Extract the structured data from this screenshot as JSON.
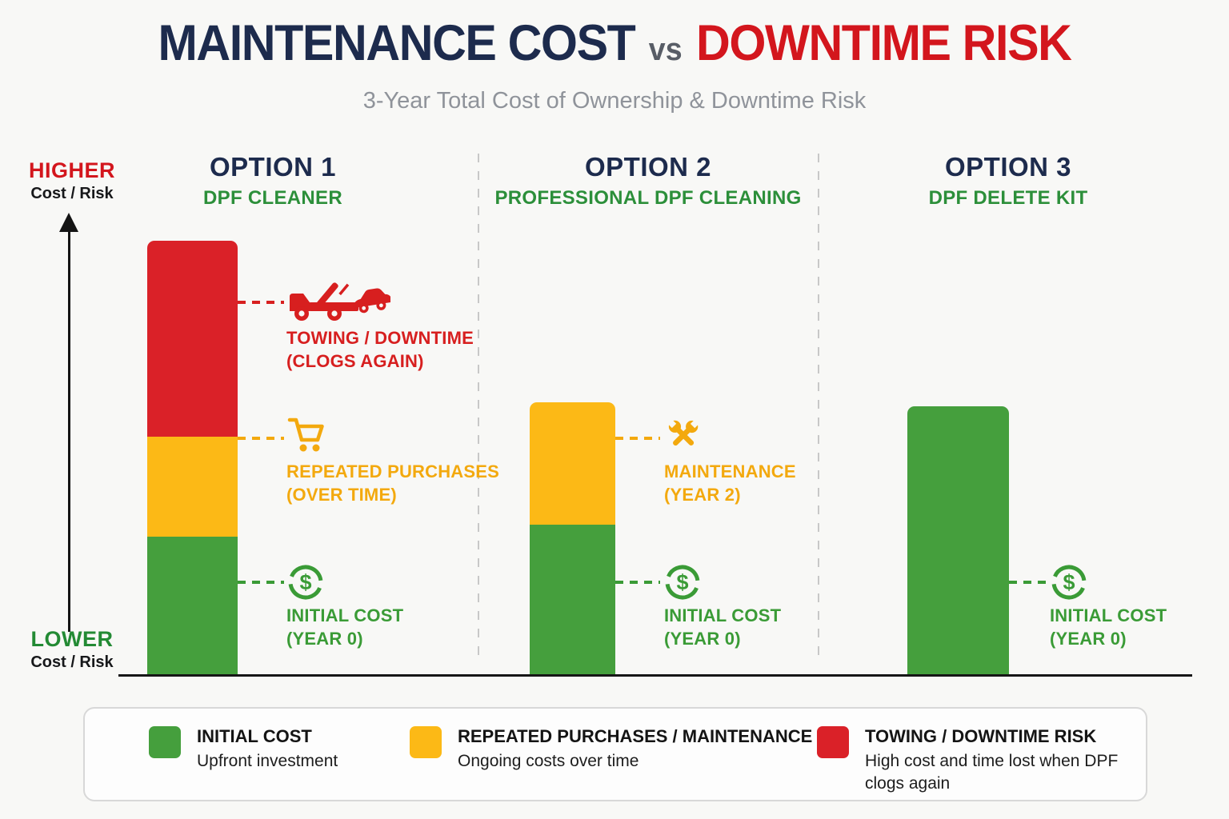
{
  "title": {
    "part_cost": "MAINTENANCE COST",
    "vs": "vs",
    "part_risk": "DOWNTIME RISK"
  },
  "subtitle": "3-Year Total Cost of Ownership & Downtime Risk",
  "axis": {
    "higher": "HIGHER",
    "higher_sub": "Cost / Risk",
    "lower": "LOWER",
    "lower_sub": "Cost / Risk"
  },
  "columns": [
    {
      "option": "OPTION 1",
      "name": "DPF CLEANER"
    },
    {
      "option": "OPTION 2",
      "name": "PROFESSIONAL DPF CLEANING"
    },
    {
      "option": "OPTION 3",
      "name": "DPF DELETE KIT"
    }
  ],
  "annotations": {
    "towing": {
      "line1": "TOWING / DOWNTIME",
      "line2": "(CLOGS AGAIN)"
    },
    "repeated": {
      "line1": "REPEATED PURCHASES",
      "line2": "(OVER TIME)"
    },
    "maintenance": {
      "line1": "MAINTENANCE",
      "line2": "(YEAR 2)"
    },
    "initial1": {
      "line1": "INITIAL COST",
      "line2": "(YEAR 0)"
    },
    "initial2": {
      "line1": "INITIAL COST",
      "line2": "(YEAR 0)"
    },
    "initial3": {
      "line1": "INITIAL COST",
      "line2": "(YEAR 0)"
    }
  },
  "legend": {
    "items": [
      {
        "label": "INITIAL COST",
        "desc": "Upfront investment",
        "color": "#459f3d"
      },
      {
        "label": "REPEATED PURCHASES / MAINTENANCE",
        "desc": "Ongoing costs over time",
        "color": "#fcb916"
      },
      {
        "label": "TOWING / DOWNTIME RISK",
        "desc": "High cost and time lost when DPF clogs again",
        "color": "#da2128"
      }
    ]
  },
  "colors": {
    "navy": "#1d2b4d",
    "title_red": "#d3161d",
    "bar_green": "#459f3d",
    "bar_yellow": "#fcb916",
    "bar_red": "#da2128",
    "label_green": "#3a9b36",
    "label_yellow": "#f3a90e",
    "label_red": "#d71f1f",
    "header_green": "#2c8f3a",
    "background": "#f8f8f6"
  },
  "chart_data": {
    "type": "bar",
    "subtype": "stacked-vertical",
    "title": "MAINTENANCE COST vs DOWNTIME RISK",
    "subtitle": "3-Year Total Cost of Ownership & Downtime Risk",
    "categories": [
      "OPTION 1 — DPF CLEANER",
      "OPTION 2 — PROFESSIONAL DPF CLEANING",
      "OPTION 3 — DPF DELETE KIT"
    ],
    "series": [
      {
        "name": "INITIAL COST (YEAR 0)",
        "color": "#459f3d",
        "values": [
          173,
          188,
          336
        ]
      },
      {
        "name": "REPEATED PURCHASES / MAINTENANCE",
        "color": "#fcb916",
        "values": [
          125,
          153,
          0
        ]
      },
      {
        "name": "TOWING / DOWNTIME RISK",
        "color": "#da2128",
        "values": [
          245,
          0,
          0
        ]
      }
    ],
    "value_axis": {
      "numeric_ticks": false,
      "units": "relative height (qualitative cost/risk)",
      "label_top": "HIGHER Cost / Risk",
      "label_bottom": "LOWER Cost / Risk"
    },
    "grid": false,
    "legend_position": "bottom"
  }
}
